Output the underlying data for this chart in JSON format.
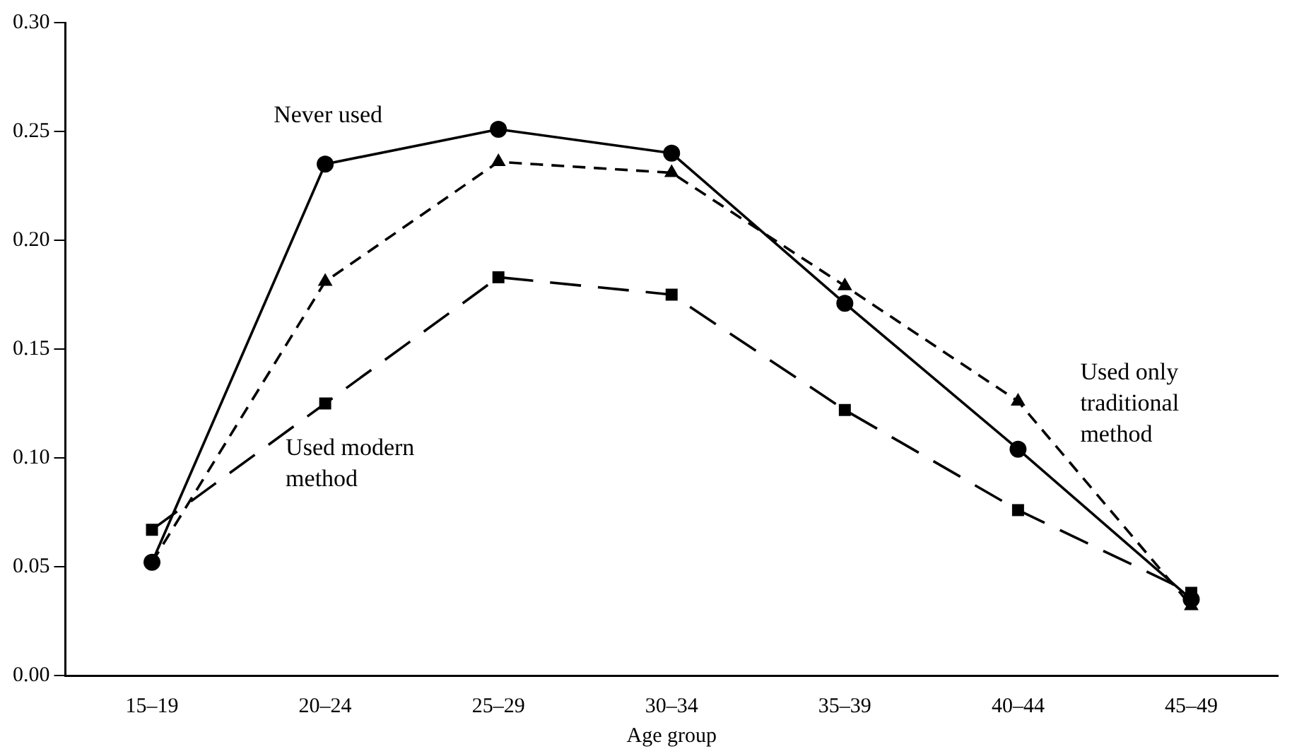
{
  "chart_data": {
    "type": "line",
    "xlabel": "Age group",
    "categories": [
      "15–19",
      "20–24",
      "25–29",
      "30–34",
      "35–39",
      "40–44",
      "45–49"
    ],
    "ylim": [
      0,
      0.3
    ],
    "yticks": [
      {
        "value": 0,
        "label": "0.00"
      },
      {
        "value": 0.05,
        "label": "0.05"
      },
      {
        "value": 0.1,
        "label": "0.10"
      },
      {
        "value": 0.15,
        "label": "0.15"
      },
      {
        "value": 0.2,
        "label": "0.20"
      },
      {
        "value": 0.25,
        "label": "0.25"
      },
      {
        "value": 0.3,
        "label": "0.30"
      }
    ],
    "grid": false,
    "legend": false,
    "series": [
      {
        "name": "Never used",
        "color": "#000000",
        "marker": "circle",
        "line_style": "solid",
        "values": [
          0.052,
          0.235,
          0.251,
          0.24,
          0.171,
          0.104,
          0.035
        ]
      },
      {
        "name": "Used only traditional method",
        "color": "#000000",
        "marker": "triangle",
        "line_style": "dashed",
        "values": [
          0.052,
          0.181,
          0.236,
          0.231,
          0.179,
          0.126,
          0.032
        ]
      },
      {
        "name": "Used modern method",
        "color": "#000000",
        "marker": "square",
        "line_style": "dashed",
        "values": [
          0.067,
          0.125,
          0.183,
          0.175,
          0.122,
          0.076,
          0.038
        ]
      }
    ]
  }
}
